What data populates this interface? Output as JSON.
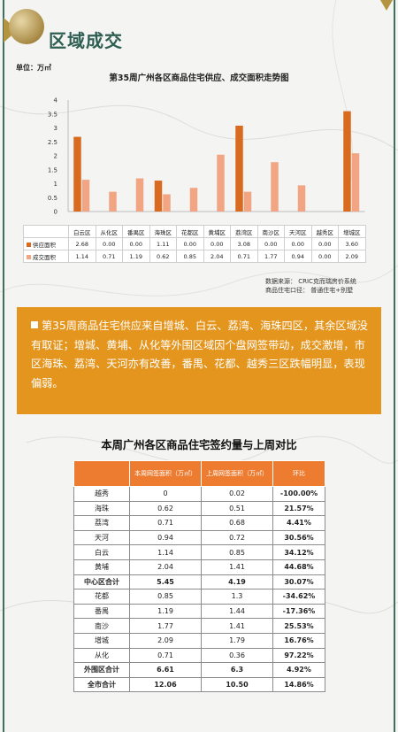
{
  "header": {
    "section_title": "区域成交"
  },
  "chart_data": {
    "type": "bar",
    "title": "第35周广州各区商品住宅供应、成交面积走势图",
    "unit_label": "单位：万㎡",
    "categories": [
      "白云区",
      "从化区",
      "番禺区",
      "海珠区",
      "花都区",
      "黄埔区",
      "荔湾区",
      "南沙区",
      "天河区",
      "越秀区",
      "增城区"
    ],
    "series": [
      {
        "name": "供应面积",
        "color": "#d96b20",
        "values": [
          2.68,
          0.0,
          0.0,
          1.11,
          0.0,
          0.0,
          3.08,
          0.0,
          0.0,
          0.0,
          3.6
        ],
        "labels": [
          "2.68",
          "0.00",
          "0.00",
          "1.11",
          "0.00",
          "0.00",
          "3.08",
          "0.00",
          "0.00",
          "0.00",
          "3.60"
        ]
      },
      {
        "name": "成交面积",
        "color": "#f2a582",
        "values": [
          1.14,
          0.71,
          1.19,
          0.62,
          0.85,
          2.04,
          0.71,
          1.77,
          0.94,
          0.0,
          2.09
        ],
        "labels": [
          "1.14",
          "0.71",
          "1.19",
          "0.62",
          "0.85",
          "2.04",
          "0.71",
          "1.77",
          "0.94",
          "0.00",
          "2.09"
        ]
      }
    ],
    "ylim": [
      0,
      4
    ],
    "yticks": [
      "0",
      "0.5",
      "1",
      "1.5",
      "2",
      "2.5",
      "3",
      "3.5",
      "4"
    ],
    "grid": false,
    "legend": "data-table"
  },
  "source": {
    "line1": "数据来源：  CRIC克而瑞房价系统",
    "line2": "商品住宅口径：  普通住宅+别墅"
  },
  "summary": {
    "text": "第35周商品住宅供应来自增城、白云、荔湾、海珠四区，其余区域没有取证；增城、黄埔、从化等外围区域因个盘网签带动，成交激增，市区海珠、荔湾、天河亦有改善，番禺、花都、越秀三区跌幅明显，表现偏弱。"
  },
  "table2": {
    "title": "本周广州各区商品住宅签约量与上周对比",
    "headers": [
      "",
      "本周网签面积（万㎡）",
      "上周网签面积（万㎡）",
      "环比"
    ],
    "rows": [
      {
        "name": "越秀",
        "this_week": "0",
        "last_week": "0.02",
        "change": "-100.00%",
        "dir": "neg",
        "total": false
      },
      {
        "name": "海珠",
        "this_week": "0.62",
        "last_week": "0.51",
        "change": "21.57%",
        "dir": "pos",
        "total": false
      },
      {
        "name": "荔湾",
        "this_week": "0.71",
        "last_week": "0.68",
        "change": "4.41%",
        "dir": "pos",
        "total": false
      },
      {
        "name": "天河",
        "this_week": "0.94",
        "last_week": "0.72",
        "change": "30.56%",
        "dir": "pos",
        "total": false
      },
      {
        "name": "白云",
        "this_week": "1.14",
        "last_week": "0.85",
        "change": "34.12%",
        "dir": "pos",
        "total": false
      },
      {
        "name": "黄埔",
        "this_week": "2.04",
        "last_week": "1.41",
        "change": "44.68%",
        "dir": "pos",
        "total": false
      },
      {
        "name": "中心区合计",
        "this_week": "5.45",
        "last_week": "4.19",
        "change": "30.07%",
        "dir": "pos",
        "total": true
      },
      {
        "name": "花都",
        "this_week": "0.85",
        "last_week": "1.3",
        "change": "-34.62%",
        "dir": "neg",
        "total": false
      },
      {
        "name": "番禺",
        "this_week": "1.19",
        "last_week": "1.44",
        "change": "-17.36%",
        "dir": "neg",
        "total": false
      },
      {
        "name": "南沙",
        "this_week": "1.77",
        "last_week": "1.41",
        "change": "25.53%",
        "dir": "pos",
        "total": false
      },
      {
        "name": "增城",
        "this_week": "2.09",
        "last_week": "1.79",
        "change": "16.76%",
        "dir": "pos",
        "total": false
      },
      {
        "name": "从化",
        "this_week": "0.71",
        "last_week": "0.36",
        "change": "97.22%",
        "dir": "pos",
        "total": false
      },
      {
        "name": "外围区合计",
        "this_week": "6.61",
        "last_week": "6.3",
        "change": "4.92%",
        "dir": "pos",
        "total": true
      },
      {
        "name": "全市合计",
        "this_week": "12.06",
        "last_week": "10.50",
        "change": "14.86%",
        "dir": "pos",
        "total": true
      }
    ]
  }
}
